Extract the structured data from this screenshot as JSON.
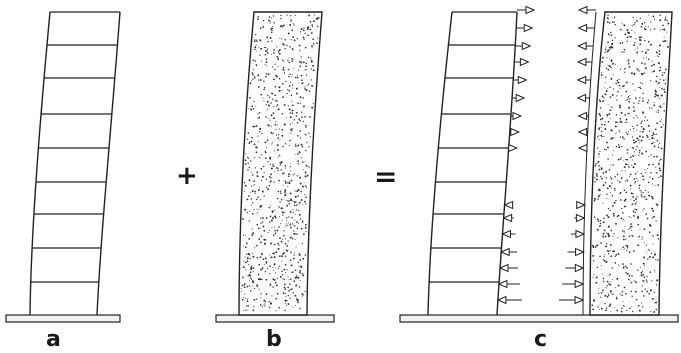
{
  "labels": {
    "a": "a",
    "b": "b",
    "c": "c"
  },
  "operators": {
    "plus": "+",
    "equals": "="
  },
  "colors": {
    "ink": "#222222",
    "base": "#f2f2f2",
    "wall_fill": "#ffffff"
  }
}
